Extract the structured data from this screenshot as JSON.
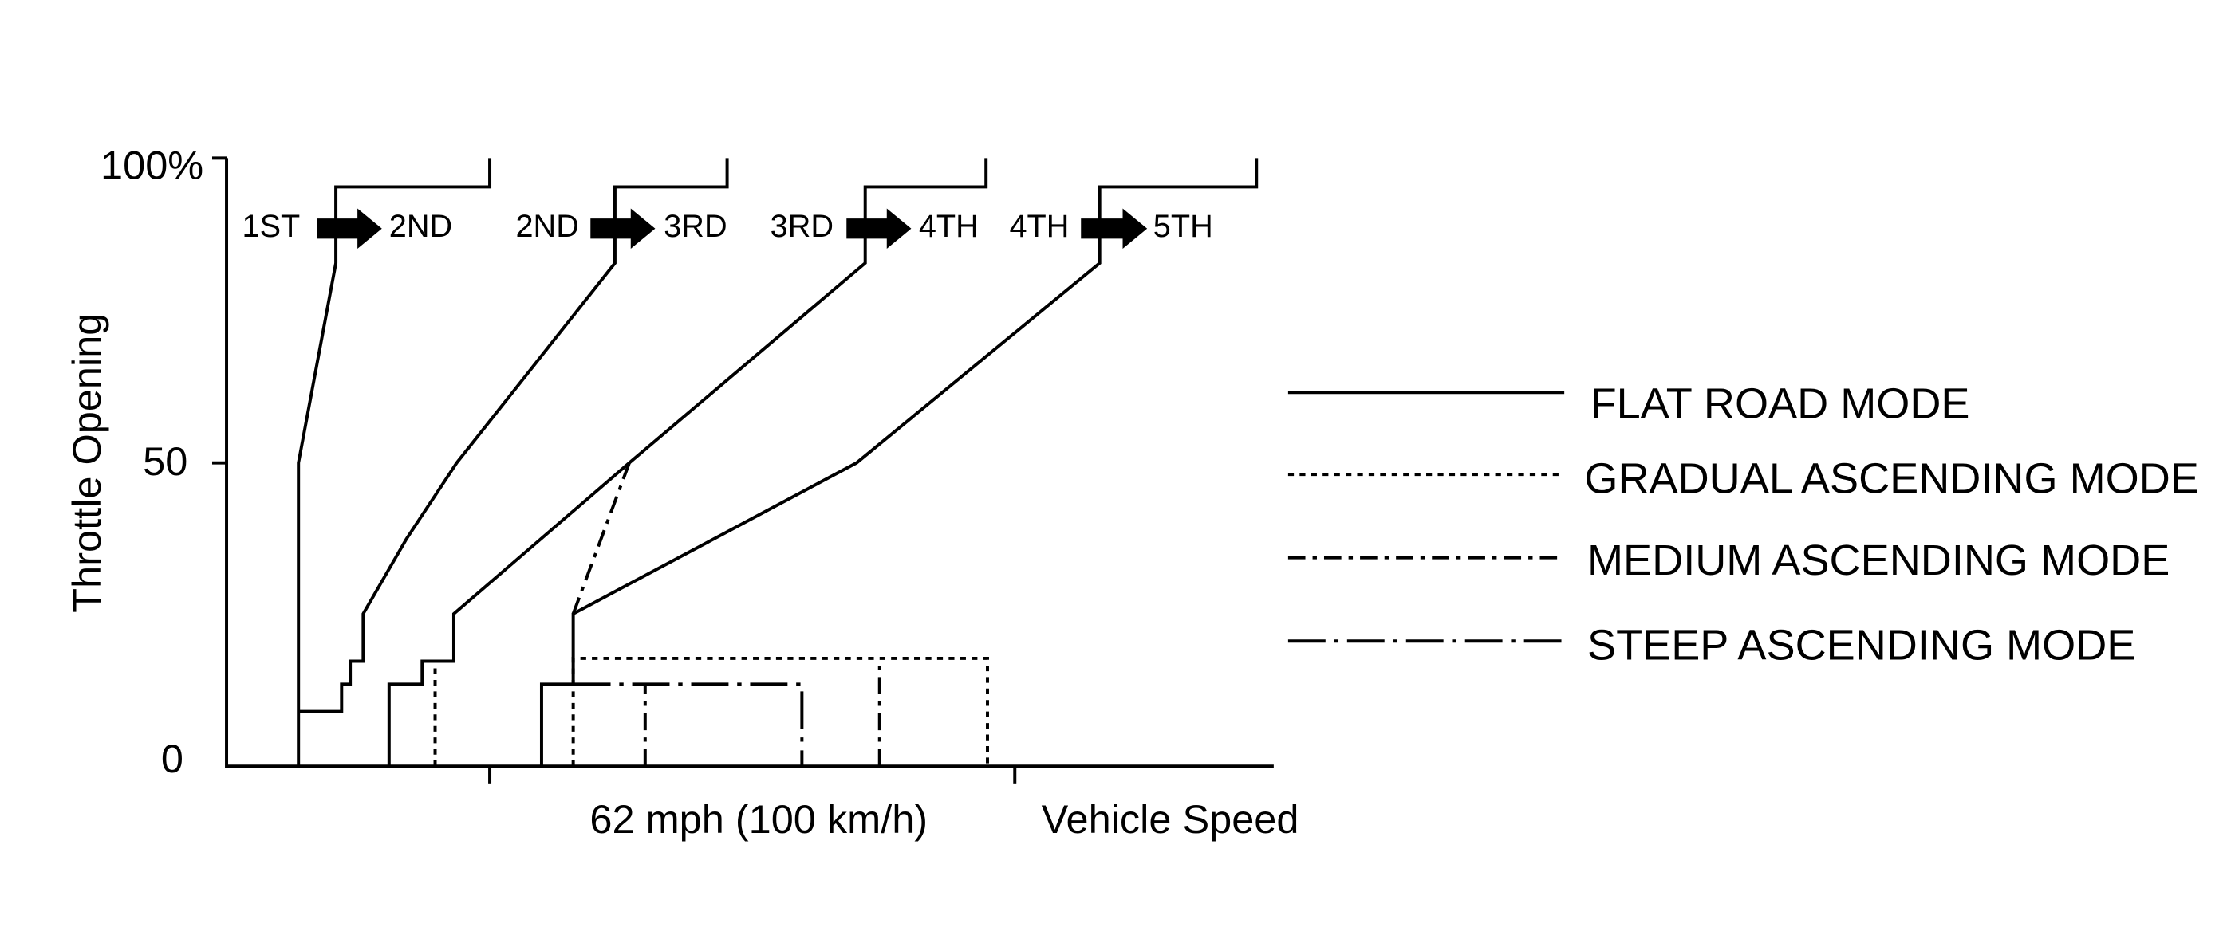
{
  "y_axis": {
    "title": "Throttle Opening",
    "ticks": [
      "100%",
      "50",
      "0"
    ]
  },
  "x_axis": {
    "tick_label": "62 mph (100 km/h)",
    "title": "Vehicle Speed"
  },
  "shifts": [
    {
      "from": "1ST",
      "to": "2ND"
    },
    {
      "from": "2ND",
      "to": "3RD"
    },
    {
      "from": "3RD",
      "to": "4TH"
    },
    {
      "from": "4TH",
      "to": "5TH"
    }
  ],
  "legend": [
    "FLAT ROAD MODE",
    "GRADUAL ASCENDING MODE",
    "MEDIUM ASCENDING MODE",
    "STEEP ASCENDING MODE"
  ]
}
